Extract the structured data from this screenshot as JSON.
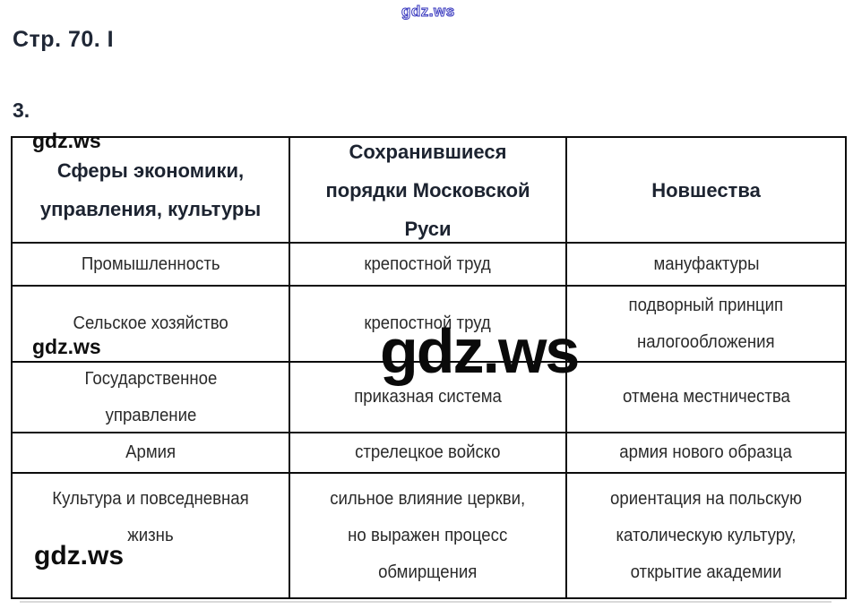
{
  "page": {
    "title": "Стр. 70. I",
    "question_number": "3.",
    "watermark": "gdz.ws"
  },
  "table": {
    "headers": [
      "Сферы экономики,\nуправления, культуры",
      "Сохранившиеся\nпорядки Московской\nРуси",
      "Новшества"
    ],
    "rows": [
      {
        "cells": [
          "Промышленность",
          "крепостной труд",
          "мануфактуры"
        ]
      },
      {
        "cells": [
          "Сельское хозяйство",
          "крепостной труд",
          "подворный принцип\nналогообложения"
        ]
      },
      {
        "cells": [
          "Государственное\nуправление",
          "приказная система",
          "отмена местничества"
        ]
      },
      {
        "cells": [
          "Армия",
          "стрелецкое войско",
          "армия нового образца"
        ]
      },
      {
        "cells": [
          "Культура и повседневная\nжизнь",
          "сильное влияние церкви,\nно выражен процесс\nобмирщения",
          "ориентация на польскую\nкатолическую культуру,\nоткрытие академии"
        ]
      }
    ]
  },
  "colors": {
    "watermark_blue": "#3434bd",
    "title_text": "#1f2736",
    "body_text": "#2a2a2a",
    "table_border": "#0c0c0c"
  }
}
